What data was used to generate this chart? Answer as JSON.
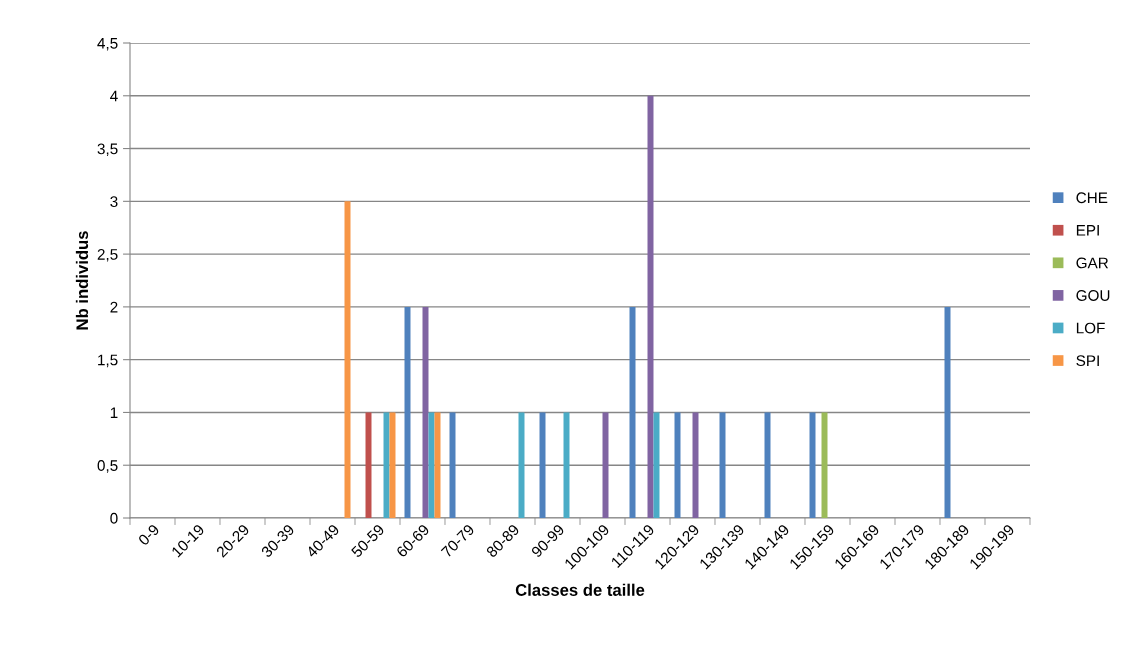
{
  "chart_data": {
    "type": "bar",
    "xlabel": "Classes de taille",
    "ylabel": "Nb individus",
    "categories": [
      "0-9",
      "10-19",
      "20-29",
      "30-39",
      "40-49",
      "50-59",
      "60-69",
      "70-79",
      "80-89",
      "90-99",
      "100-109",
      "110-119",
      "120-129",
      "130-139",
      "140-149",
      "150-159",
      "160-169",
      "170-179",
      "180-189",
      "190-199"
    ],
    "series": [
      {
        "name": "CHE",
        "color": "#4f81bd",
        "values": [
          0,
          0,
          0,
          0,
          0,
          0,
          2,
          1,
          0,
          1,
          0,
          2,
          1,
          1,
          1,
          1,
          0,
          0,
          2,
          0
        ]
      },
      {
        "name": "EPI",
        "color": "#c0504d",
        "values": [
          0,
          0,
          0,
          0,
          0,
          1,
          0,
          0,
          0,
          0,
          0,
          0,
          0,
          0,
          0,
          0,
          0,
          0,
          0,
          0
        ]
      },
      {
        "name": "GAR",
        "color": "#9bbb59",
        "values": [
          0,
          0,
          0,
          0,
          0,
          0,
          0,
          0,
          0,
          0,
          0,
          0,
          0,
          0,
          0,
          1,
          0,
          0,
          0,
          0
        ]
      },
      {
        "name": "GOU",
        "color": "#8064a2",
        "values": [
          0,
          0,
          0,
          0,
          0,
          0,
          2,
          0,
          0,
          0,
          1,
          4,
          1,
          0,
          0,
          0,
          0,
          0,
          0,
          0
        ]
      },
      {
        "name": "LOF",
        "color": "#4bacc6",
        "values": [
          0,
          0,
          0,
          0,
          0,
          1,
          1,
          0,
          1,
          1,
          0,
          1,
          0,
          0,
          0,
          0,
          0,
          0,
          0,
          0
        ]
      },
      {
        "name": "SPI",
        "color": "#f79646",
        "values": [
          0,
          0,
          0,
          0,
          3,
          1,
          1,
          0,
          0,
          0,
          0,
          0,
          0,
          0,
          0,
          0,
          0,
          0,
          0,
          0
        ]
      }
    ],
    "ylim": [
      0,
      4.5
    ],
    "yticks": [
      0,
      {
        "value": 0.5,
        "label": "0,5"
      },
      1,
      {
        "value": 1.5,
        "label": "1,5"
      },
      2,
      {
        "value": 2.5,
        "label": "2,5"
      },
      3,
      {
        "value": 3.5,
        "label": "3,5"
      },
      4,
      {
        "value": 4.5,
        "label": "4,5"
      }
    ],
    "grid": "y",
    "legend": "right"
  }
}
